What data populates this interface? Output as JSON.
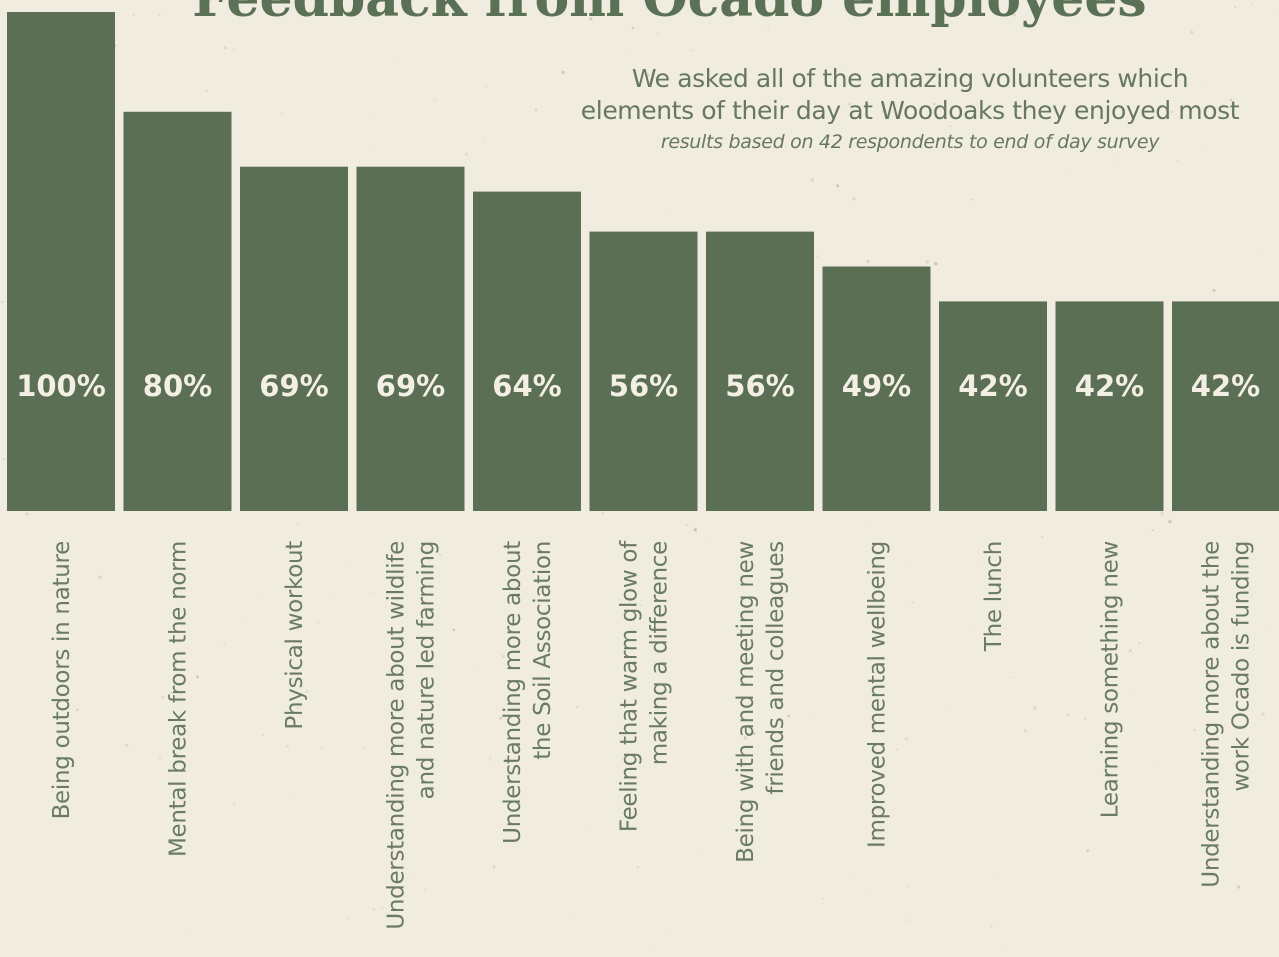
{
  "title": "Feedback from Ocado employees",
  "subtitle": [
    "We asked all of the amazing volunteers which",
    "elements of their day at Woodoaks they enjoyed most"
  ],
  "note": "results based on 42 respondents to end of day survey",
  "colors": {
    "background": "#f1ece0",
    "bar": "#5b6f55",
    "bar_label": "#f4efe4",
    "category_label": "#6a7b64",
    "title": "#5a7155"
  },
  "chart_data": {
    "type": "bar",
    "title": "Feedback from Ocado employees",
    "xlabel": "",
    "ylabel": "",
    "ylim": [
      0,
      100
    ],
    "unit": "%",
    "grid": false,
    "legend": "none",
    "categories": [
      [
        "Being outdoors in nature"
      ],
      [
        "Mental break from the norm"
      ],
      [
        "Physical workout"
      ],
      [
        "Understanding more about wildlife",
        "and nature led farming"
      ],
      [
        "Understanding more about",
        "the Soil Association"
      ],
      [
        "Feeling that warm glow of",
        "making a difference"
      ],
      [
        "Being with and meeting new",
        "friends and colleagues"
      ],
      [
        "Improved mental wellbeing"
      ],
      [
        "The lunch"
      ],
      [
        "Learning something new"
      ],
      [
        "Understanding more about the",
        "work Ocado is funding"
      ]
    ],
    "values": [
      100,
      80,
      69,
      69,
      64,
      56,
      56,
      49,
      42,
      42,
      42
    ],
    "data_labels": [
      "100%",
      "80%",
      "69%",
      "69%",
      "64%",
      "56%",
      "56%",
      "49%",
      "42%",
      "42%",
      "42%"
    ]
  }
}
